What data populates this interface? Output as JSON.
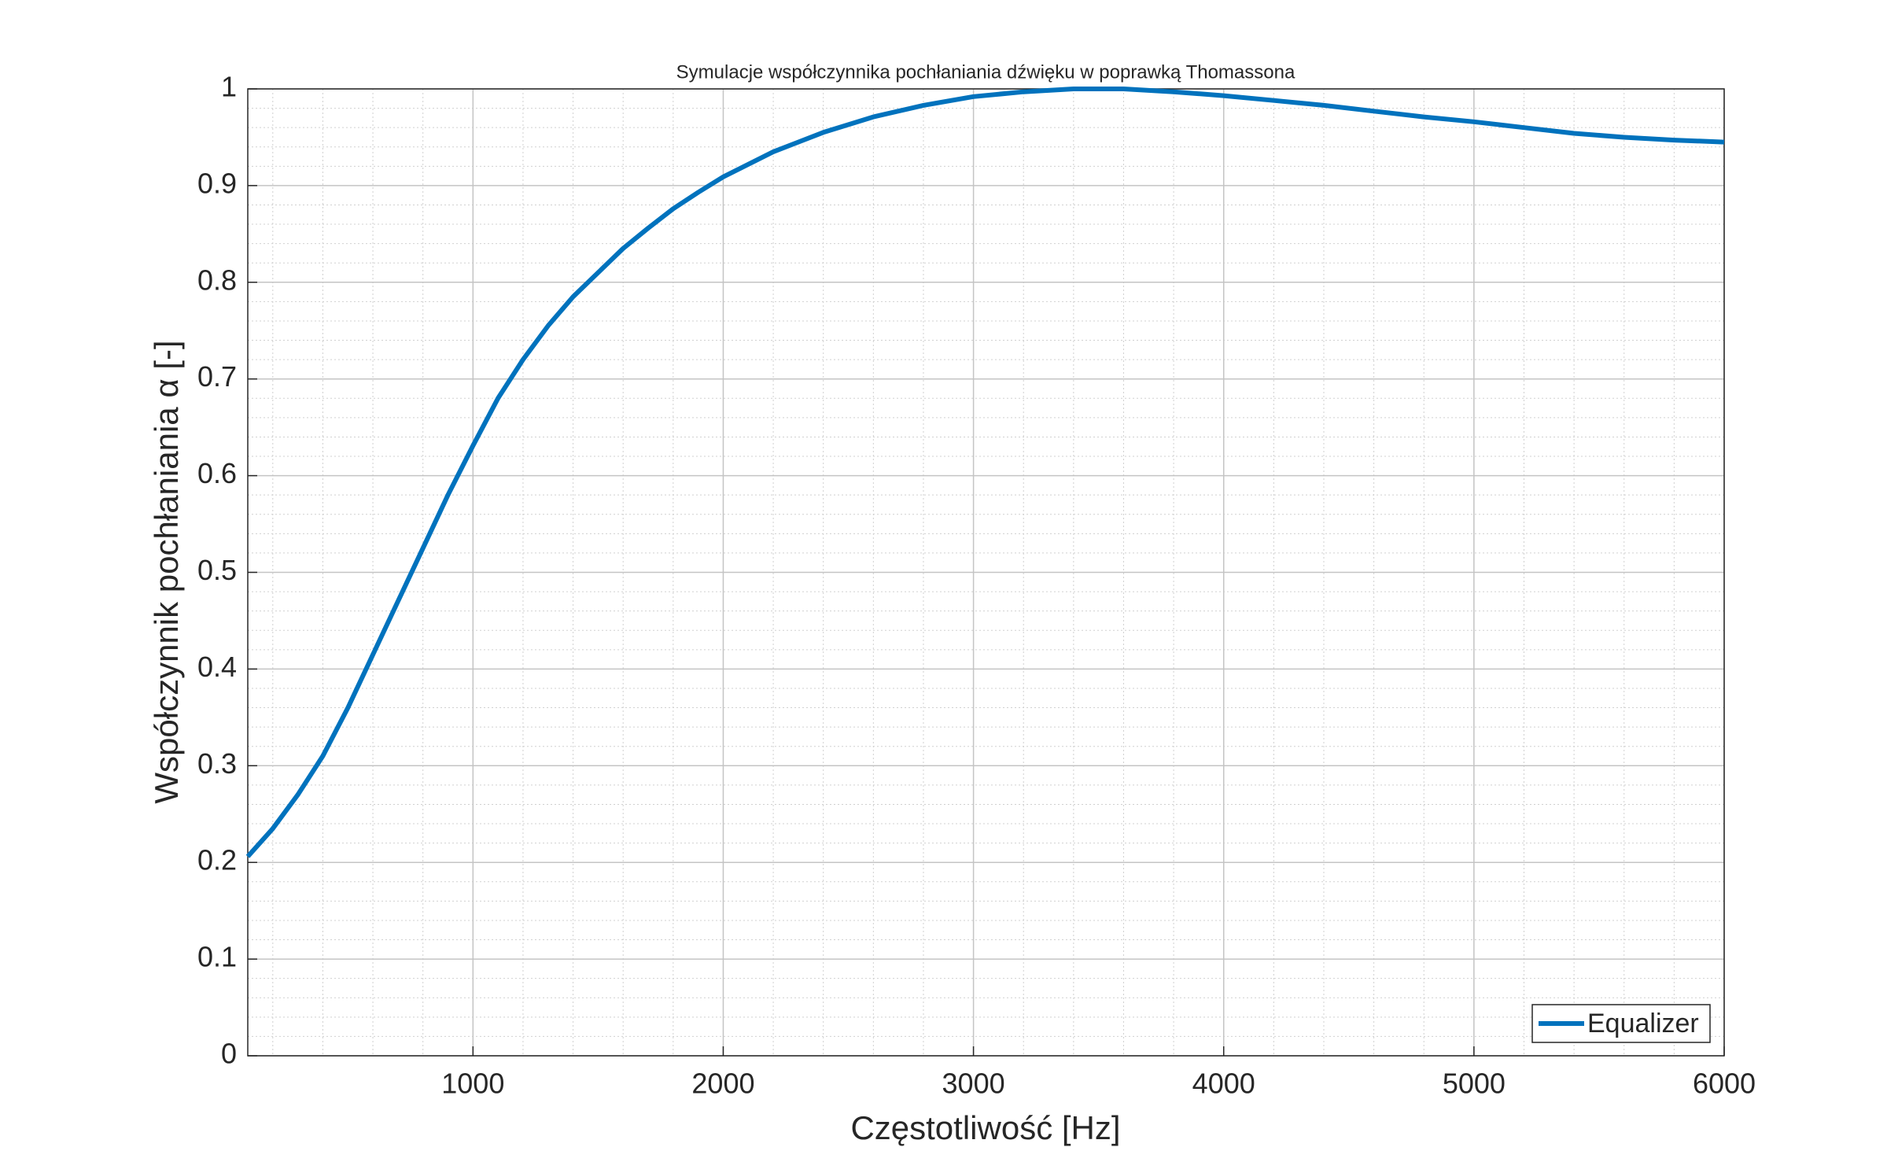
{
  "chart_data": {
    "type": "line",
    "title": "Symulacje współczynnika pochłaniania dźwięku w poprawką Thomassona",
    "xlabel": "Częstotliwość [Hz]",
    "ylabel": "Współczynnik pochłaniania α [-]",
    "x": [
      100,
      200,
      300,
      400,
      500,
      600,
      700,
      800,
      900,
      1000,
      1100,
      1200,
      1300,
      1400,
      1500,
      1600,
      1700,
      1800,
      1900,
      2000,
      2200,
      2400,
      2600,
      2800,
      3000,
      3200,
      3400,
      3600,
      3800,
      4000,
      4200,
      4400,
      4600,
      4800,
      5000,
      5200,
      5400,
      5600,
      5800,
      6000
    ],
    "series": [
      {
        "name": "Equalizer",
        "color": "#0072bd",
        "values": [
          0.206,
          0.235,
          0.27,
          0.31,
          0.36,
          0.415,
          0.47,
          0.525,
          0.58,
          0.631,
          0.68,
          0.72,
          0.755,
          0.785,
          0.81,
          0.835,
          0.856,
          0.876,
          0.893,
          0.909,
          0.935,
          0.955,
          0.971,
          0.983,
          0.992,
          0.997,
          1.0,
          1.0,
          0.997,
          0.993,
          0.988,
          0.983,
          0.977,
          0.971,
          0.966,
          0.96,
          0.954,
          0.95,
          0.947,
          0.945
        ]
      }
    ],
    "xlim": [
      100,
      6000
    ],
    "xticks": [
      1000,
      2000,
      3000,
      4000,
      5000,
      6000
    ],
    "ylim": [
      0,
      1
    ],
    "yticks": [
      0,
      0.1,
      0.2,
      0.3,
      0.4,
      0.5,
      0.6,
      0.7,
      0.8,
      0.9,
      1
    ],
    "grid": true,
    "minor_grid": true,
    "legend": "lower right"
  }
}
